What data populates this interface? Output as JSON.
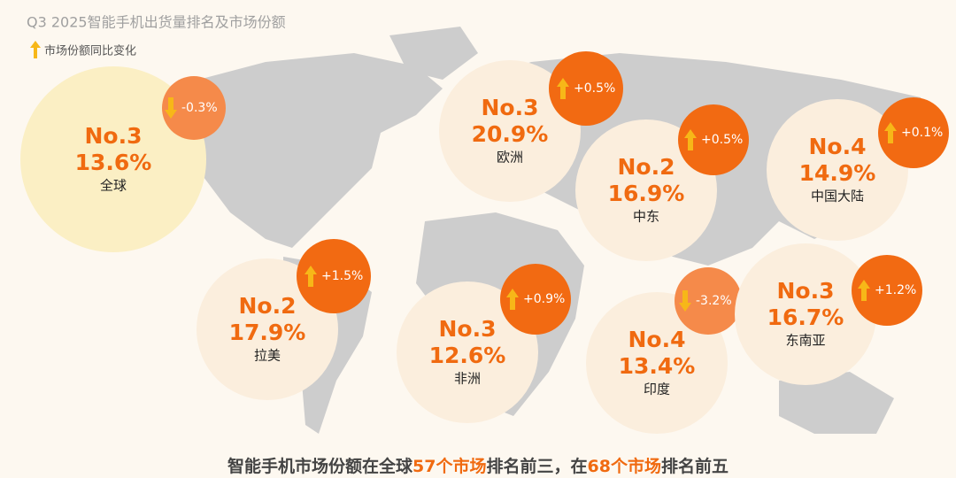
{
  "header": {
    "title": "Q3 2025智能手机出货量排名及市场份额",
    "legend": "市场份额同比变化"
  },
  "regions": [
    {
      "rank": "No.3",
      "share": "13.6%",
      "name": "全球",
      "change": "-0.3%"
    },
    {
      "rank": "No.3",
      "share": "20.9%",
      "name": "欧洲",
      "change": "+0.5%"
    },
    {
      "rank": "No.2",
      "share": "16.9%",
      "name": "中东",
      "change": "+0.5%"
    },
    {
      "rank": "No.4",
      "share": "14.9%",
      "name": "中国大陆",
      "change": "+0.1%"
    },
    {
      "rank": "No.2",
      "share": "17.9%",
      "name": "拉美",
      "change": "+1.5%"
    },
    {
      "rank": "No.3",
      "share": "12.6%",
      "name": "非洲",
      "change": "+0.9%"
    },
    {
      "rank": "No.4",
      "share": "13.4%",
      "name": "印度",
      "change": "-3.2%"
    },
    {
      "rank": "No.3",
      "share": "16.7%",
      "name": "东南亚",
      "change": "+1.2%"
    }
  ],
  "footer": {
    "parts": [
      "智能手机市场份额在全球",
      "57个市场",
      "排名前三，在",
      "68个市场",
      "排名前五"
    ]
  }
}
